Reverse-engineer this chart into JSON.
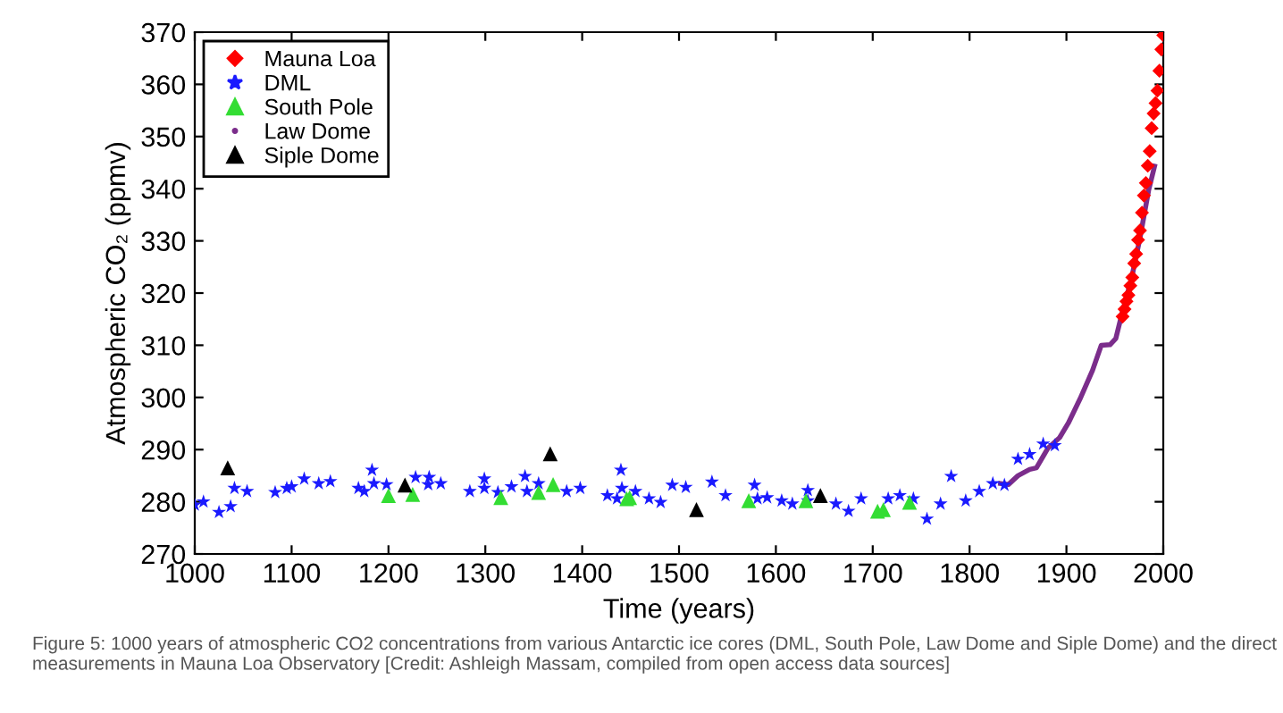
{
  "chart_data": {
    "type": "scatter",
    "xlabel": "Time (years)",
    "ylabel": "Atmospheric CO₂ (ppmv)",
    "xlim": [
      1000,
      2000
    ],
    "xticks": [
      1000,
      1100,
      1200,
      1300,
      1400,
      1500,
      1600,
      1700,
      1800,
      1900,
      2000
    ],
    "ylim": [
      270,
      370
    ],
    "yticks": [
      270,
      280,
      290,
      300,
      310,
      320,
      330,
      340,
      350,
      360,
      370
    ],
    "grid": false,
    "legend": "top left",
    "annotations": [
      "Figure 5: 1000 years of atmospheric CO2 concentrations from various Antarctic ice cores (DML, South Pole, Law Dome and Siple Dome) and the direct measurements in Mauna Loa Observatory [Credit: Ashleigh Massam, compiled from open access data sources]"
    ],
    "series": [
      {
        "name": "Mauna Loa",
        "marker": "diamond",
        "color": "#ff0000",
        "x": [
          1958,
          1960,
          1962,
          1964,
          1966,
          1968,
          1970,
          1972,
          1974,
          1976,
          1978,
          1980,
          1982,
          1984,
          1986,
          1988,
          1990,
          1992,
          1994,
          1996,
          1998,
          2000
        ],
        "values": [
          315.5,
          316.9,
          318.4,
          319.6,
          321.4,
          323.0,
          325.7,
          327.5,
          330.2,
          332.0,
          335.4,
          338.7,
          341.1,
          344.4,
          347.2,
          351.6,
          354.4,
          356.4,
          358.8,
          362.6,
          366.7,
          369.4
        ]
      },
      {
        "name": "DML",
        "marker": "star",
        "color": "#1a1aff",
        "x": [
          1000,
          1009,
          1025,
          1037,
          1041,
          1054,
          1083,
          1095,
          1100,
          1113,
          1128,
          1140,
          1169,
          1175,
          1183,
          1185,
          1198,
          1228,
          1241,
          1242,
          1254,
          1284,
          1299,
          1299,
          1313,
          1327,
          1341,
          1343,
          1355,
          1384,
          1398,
          1426,
          1440,
          1441,
          1436,
          1455,
          1469,
          1481,
          1493,
          1507,
          1534,
          1548,
          1578,
          1581,
          1591,
          1606,
          1617,
          1633,
          1633,
          1662,
          1675,
          1688,
          1716,
          1728,
          1742,
          1756,
          1770,
          1781,
          1796,
          1810,
          1824,
          1836,
          1850,
          1862,
          1876,
          1888
        ],
        "values": [
          279.4,
          280.0,
          278.0,
          279.1,
          282.6,
          282.0,
          281.8,
          282.6,
          282.9,
          284.4,
          283.5,
          283.9,
          282.6,
          282.0,
          286.1,
          283.5,
          283.3,
          284.7,
          283.3,
          284.7,
          283.5,
          282.0,
          284.4,
          282.6,
          281.8,
          282.9,
          284.9,
          282.0,
          283.5,
          282.0,
          282.6,
          281.2,
          286.1,
          282.6,
          280.6,
          282.0,
          280.6,
          279.9,
          283.2,
          282.8,
          283.8,
          281.2,
          283.2,
          280.6,
          280.8,
          280.2,
          279.6,
          282.2,
          280.2,
          279.6,
          278.2,
          280.6,
          280.6,
          281.2,
          280.6,
          276.7,
          279.6,
          284.9,
          280.2,
          282.0,
          283.5,
          283.2,
          288.2,
          289.1,
          291.1,
          290.8
        ]
      },
      {
        "name": "South Pole",
        "marker": "triangle",
        "color": "#33dd33",
        "x": [
          1200,
          1225,
          1316,
          1355,
          1370,
          1446,
          1449,
          1572,
          1631,
          1705,
          1711,
          1738
        ],
        "values": [
          281.2,
          281.4,
          280.8,
          281.8,
          283.3,
          280.6,
          280.8,
          280.2,
          280.2,
          278.2,
          278.5,
          279.9
        ]
      },
      {
        "name": "Law Dome",
        "type": "line",
        "marker": "none",
        "color": "#7b2d8b",
        "x": [
          1832,
          1840,
          1850,
          1862,
          1869,
          1881,
          1893,
          1902,
          1914,
          1927,
          1936,
          1945,
          1951,
          1957,
          1967,
          1976,
          1985,
          1991
        ],
        "values": [
          283.5,
          283.3,
          285.0,
          286.2,
          286.5,
          290.3,
          292.3,
          295.1,
          299.7,
          305.2,
          310.0,
          310.1,
          311.3,
          315.8,
          322.6,
          330.6,
          339.8,
          344.3
        ]
      },
      {
        "name": "Siple Dome",
        "marker": "triangle",
        "color": "#000000",
        "x": [
          1034,
          1217,
          1367,
          1518,
          1646
        ],
        "values": [
          286.5,
          283.2,
          289.2,
          278.5,
          281.2
        ]
      }
    ]
  }
}
